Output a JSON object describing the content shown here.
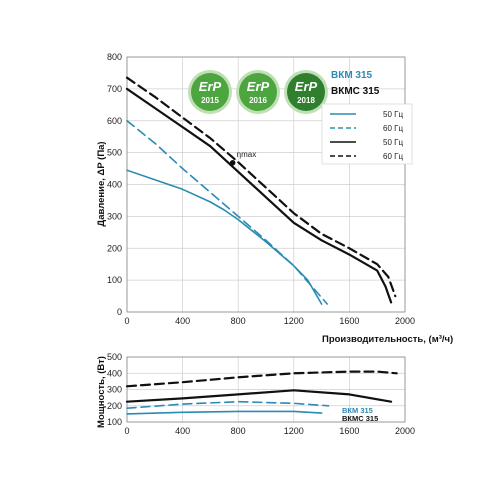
{
  "colors": {
    "blue": "#2b8bb3",
    "black": "#111111",
    "green": "#4da53f",
    "green_dark": "#2f7f2f",
    "grid": "#cfcfcf"
  },
  "badges": [
    {
      "top": "ErP",
      "year": "2015"
    },
    {
      "top": "ErP",
      "year": "2016"
    },
    {
      "top": "ErP",
      "year": "2018"
    }
  ],
  "models": {
    "bkm": "ВКМ 315",
    "bkmc": "ВКМС 315"
  },
  "eta_label": "ηmax",
  "chart_data": [
    {
      "type": "line",
      "xlabel": "Производительность, (м³/ч)",
      "ylabel": "Давление, ΔP (Па)",
      "xlim": [
        0,
        2000
      ],
      "ylim": [
        0,
        800
      ],
      "xticks": [
        0,
        400,
        800,
        1200,
        1600,
        2000
      ],
      "yticks": [
        0,
        100,
        200,
        300,
        400,
        500,
        600,
        700,
        800
      ],
      "grid": true,
      "legend_position": "right",
      "series": [
        {
          "name": "50 Гц",
          "model": "ВКМ 315",
          "color": "#2b8bb3",
          "dash": false,
          "points": [
            [
              0,
              445
            ],
            [
              200,
              415
            ],
            [
              400,
              385
            ],
            [
              600,
              345
            ],
            [
              700,
              320
            ],
            [
              800,
              290
            ],
            [
              1000,
              220
            ],
            [
              1200,
              145
            ],
            [
              1300,
              100
            ],
            [
              1400,
              25
            ]
          ]
        },
        {
          "name": "60 Гц",
          "model": "ВКМ 315",
          "color": "#2b8bb3",
          "dash": true,
          "points": [
            [
              0,
              600
            ],
            [
              200,
              530
            ],
            [
              400,
              450
            ],
            [
              600,
              375
            ],
            [
              800,
              300
            ],
            [
              1000,
              225
            ],
            [
              1200,
              145
            ],
            [
              1300,
              95
            ],
            [
              1440,
              25
            ]
          ]
        },
        {
          "name": "50 Гц",
          "model": "ВКМС 315",
          "color": "#111111",
          "dash": false,
          "points": [
            [
              0,
              700
            ],
            [
              200,
              640
            ],
            [
              400,
              580
            ],
            [
              600,
              520
            ],
            [
              800,
              440
            ],
            [
              1000,
              360
            ],
            [
              1200,
              280
            ],
            [
              1400,
              225
            ],
            [
              1600,
              180
            ],
            [
              1800,
              130
            ],
            [
              1860,
              80
            ],
            [
              1900,
              30
            ]
          ]
        },
        {
          "name": "60 Гц",
          "model": "ВКМС 315",
          "color": "#111111",
          "dash": true,
          "points": [
            [
              0,
              735
            ],
            [
              200,
              675
            ],
            [
              400,
              610
            ],
            [
              600,
              545
            ],
            [
              800,
              470
            ],
            [
              1000,
              390
            ],
            [
              1200,
              310
            ],
            [
              1400,
              245
            ],
            [
              1600,
              200
            ],
            [
              1800,
              150
            ],
            [
              1880,
              110
            ],
            [
              1930,
              50
            ]
          ]
        }
      ],
      "annotations": [
        {
          "text": "ηmax",
          "x": 760,
          "y": 468
        }
      ]
    },
    {
      "type": "line",
      "xlabel": "",
      "ylabel": "Мощность, (Вт)",
      "xlim": [
        0,
        2000
      ],
      "ylim": [
        100,
        500
      ],
      "xticks": [
        0,
        400,
        800,
        1200,
        1600,
        2000
      ],
      "yticks": [
        100,
        200,
        300,
        400,
        500
      ],
      "grid": true,
      "series": [
        {
          "model": "ВКМ 315",
          "freq": "50 Гц",
          "color": "#2b8bb3",
          "dash": false,
          "points": [
            [
              0,
              150
            ],
            [
              400,
              160
            ],
            [
              800,
              165
            ],
            [
              1200,
              165
            ],
            [
              1400,
              155
            ]
          ]
        },
        {
          "model": "ВКМ 315",
          "freq": "60 Гц",
          "color": "#2b8bb3",
          "dash": true,
          "points": [
            [
              0,
              185
            ],
            [
              400,
              210
            ],
            [
              800,
              225
            ],
            [
              1200,
              215
            ],
            [
              1450,
              200
            ]
          ]
        },
        {
          "model": "ВКМС 315",
          "freq": "50 Гц",
          "color": "#111111",
          "dash": false,
          "points": [
            [
              0,
              225
            ],
            [
              400,
              245
            ],
            [
              800,
              270
            ],
            [
              1200,
              295
            ],
            [
              1600,
              270
            ],
            [
              1900,
              225
            ]
          ]
        },
        {
          "model": "ВКМС 315",
          "freq": "60 Гц",
          "color": "#111111",
          "dash": true,
          "points": [
            [
              0,
              320
            ],
            [
              400,
              345
            ],
            [
              800,
              375
            ],
            [
              1200,
              400
            ],
            [
              1600,
              410
            ],
            [
              1800,
              410
            ],
            [
              1940,
              400
            ]
          ]
        }
      ],
      "labels": [
        "ВКМ 315",
        "ВКМС 315"
      ]
    }
  ]
}
